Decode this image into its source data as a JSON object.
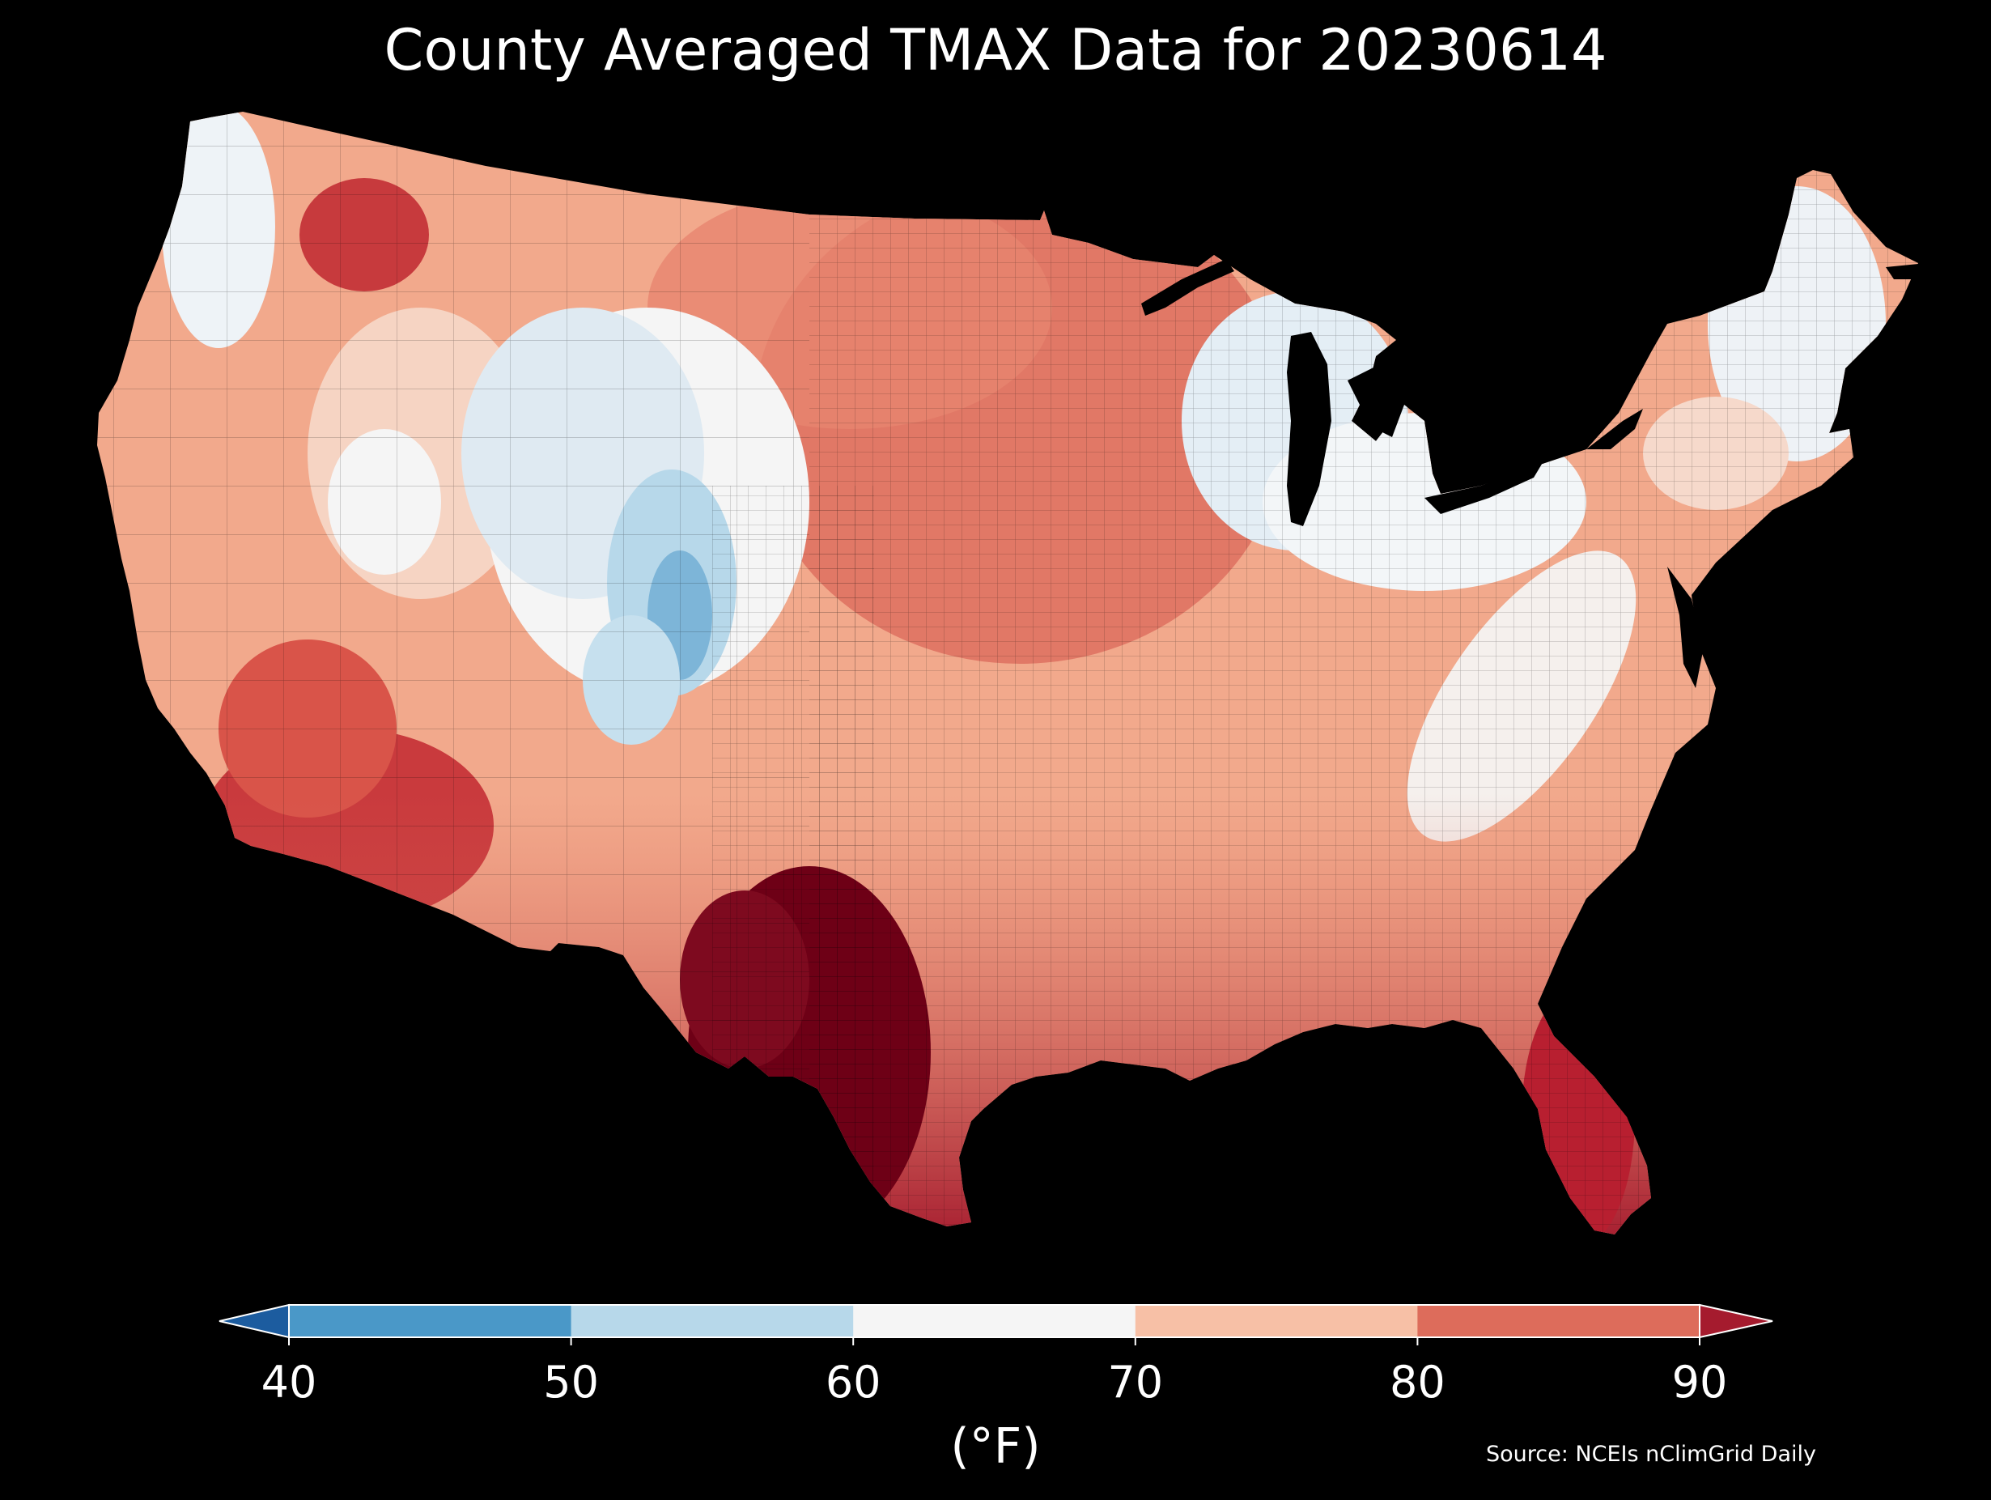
{
  "title": "County Averaged TMAX Data for 20230614",
  "source": "Source: NCEIs nClimGrid Daily",
  "colorbar": {
    "units": "(°F)",
    "ticks": [
      "40",
      "50",
      "60",
      "70",
      "80",
      "90"
    ],
    "bins": [
      {
        "range": "<40",
        "color": "#1c5c9f"
      },
      {
        "range": "40-50",
        "color": "#4a98c8"
      },
      {
        "range": "50-60",
        "color": "#b7d8ea"
      },
      {
        "range": "60-70",
        "color": "#f5f5f5"
      },
      {
        "range": "70-80",
        "color": "#f7c0a6"
      },
      {
        "range": "80-90",
        "color": "#dd6c5b"
      },
      {
        "range": ">90",
        "color": "#a51b2e"
      }
    ]
  },
  "colors": {
    "background": "#000000",
    "land_hot": "#a51b2e",
    "land_very_hot": "#6e0016",
    "land_warm": "#dd6c5b",
    "land_mild": "#f7c0a6",
    "land_neutral": "#f5f5f5",
    "land_cool": "#b7d8ea",
    "land_cold": "#4a98c8"
  }
}
